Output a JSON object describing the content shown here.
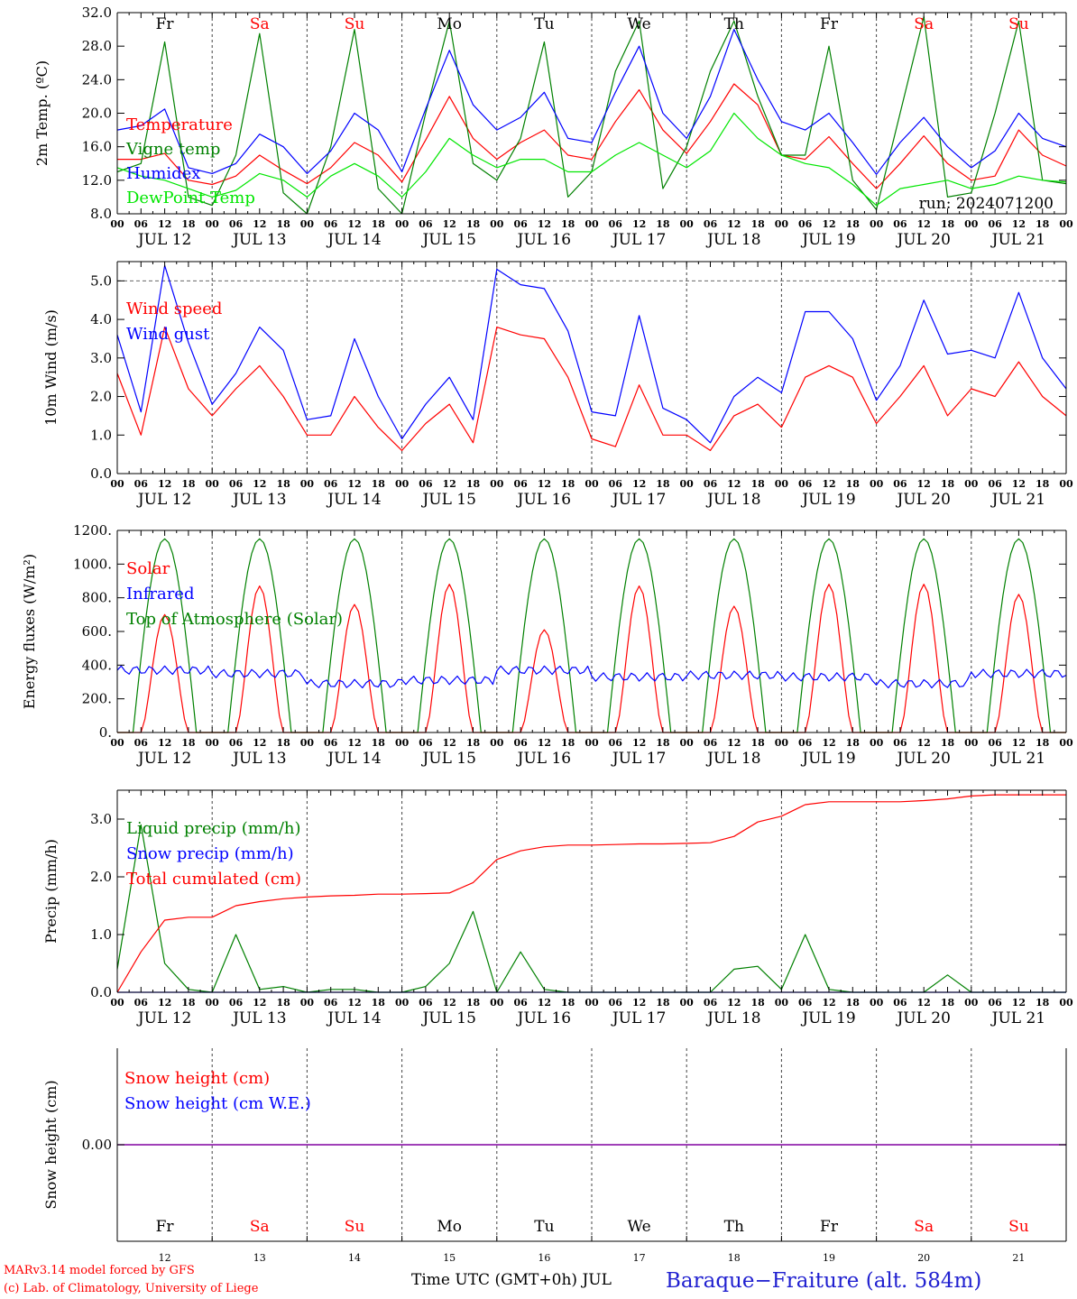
{
  "colors": {
    "temperature": "#ff0000",
    "vigne": "#008000",
    "humidex": "#0000ff",
    "dewpoint": "#00e600",
    "weekend": "#ff0000",
    "weekday": "#000000",
    "title": "#2020d0",
    "snow_line": "#8000a0"
  },
  "days": {
    "weekday_labels": [
      "Fr",
      "Sa",
      "Su",
      "Mo",
      "Tu",
      "We",
      "Th",
      "Fr",
      "Sa",
      "Su"
    ],
    "weekend_flags": [
      false,
      true,
      true,
      false,
      false,
      false,
      false,
      false,
      true,
      true
    ],
    "date_labels": [
      "JUL 12",
      "JUL 13",
      "JUL 14",
      "JUL 15",
      "JUL 16",
      "JUL 17",
      "JUL 18",
      "JUL 19",
      "JUL 20",
      "JUL 21"
    ],
    "day_numbers": [
      "12",
      "13",
      "14",
      "15",
      "16",
      "17",
      "18",
      "19",
      "20",
      "21"
    ],
    "hour_ticks": [
      "00",
      "06",
      "12",
      "18"
    ],
    "final_hour": "00"
  },
  "chart_data": [
    {
      "type": "line",
      "ylabel": "2m Temp. (ºC)",
      "ylim": [
        8,
        32
      ],
      "yticks": [
        "8.0",
        "12.0",
        "16.0",
        "20.0",
        "24.0",
        "28.0",
        "32.0"
      ],
      "annotation": "run: 2024071200",
      "x_hours": [
        0,
        6,
        12,
        18,
        24,
        30,
        36,
        42,
        48,
        54,
        60,
        66,
        72,
        78,
        84,
        90,
        96,
        102,
        108,
        114,
        120,
        126,
        132,
        138,
        144,
        150,
        156,
        162,
        168,
        174,
        180,
        186,
        192,
        198,
        204,
        210,
        216,
        222,
        228,
        234,
        240
      ],
      "series": [
        {
          "name": "Temperature",
          "color": "#ff0000",
          "values": [
            14.5,
            14.5,
            15.2,
            12.0,
            11.5,
            12.5,
            15.0,
            13.2,
            11.6,
            13.5,
            16.5,
            15.0,
            11.8,
            16.8,
            22.0,
            17.0,
            14.5,
            16.5,
            18.0,
            15.0,
            14.5,
            19.0,
            22.8,
            18.0,
            15.2,
            19.0,
            23.5,
            21.0,
            15.0,
            14.5,
            17.2,
            14.0,
            11.0,
            14.0,
            17.3,
            14.0,
            12.0,
            12.5,
            18.0,
            15.0,
            13.7
          ]
        },
        {
          "name": "Vigne temp",
          "color": "#008000",
          "values": [
            13.0,
            14.0,
            28.5,
            10.0,
            9.0,
            15.0,
            29.5,
            10.5,
            7.5,
            16.0,
            30.0,
            11.0,
            8.0,
            20.0,
            31.0,
            14.0,
            12.0,
            17.0,
            28.5,
            10.0,
            13.0,
            25.0,
            31.0,
            11.0,
            16.0,
            25.0,
            31.0,
            22.0,
            15.0,
            15.0,
            28.0,
            12.0,
            8.5,
            20.0,
            31.5,
            10.0,
            10.5,
            20.0,
            31.0,
            12.0,
            11.6
          ]
        },
        {
          "name": "Humidex",
          "color": "#0000ff",
          "values": [
            18.0,
            18.5,
            20.5,
            13.5,
            12.8,
            14.0,
            17.5,
            16.0,
            12.8,
            15.5,
            20.0,
            18.0,
            13.0,
            20.5,
            27.5,
            21.0,
            18.0,
            19.5,
            22.5,
            17.0,
            16.5,
            22.5,
            28.0,
            20.0,
            17.0,
            22.0,
            30.0,
            24.0,
            19.0,
            18.0,
            20.0,
            16.5,
            12.7,
            16.5,
            19.5,
            16.0,
            13.5,
            15.5,
            20.0,
            17.0,
            16.0
          ]
        },
        {
          "name": "DewPoint Temp",
          "color": "#00e600",
          "values": [
            13.5,
            12.5,
            12.0,
            11.0,
            10.0,
            10.8,
            12.8,
            12.0,
            10.0,
            12.5,
            14.0,
            12.5,
            10.0,
            13.0,
            17.0,
            15.0,
            13.5,
            14.5,
            14.5,
            13.0,
            13.0,
            15.0,
            16.5,
            15.0,
            13.5,
            15.5,
            20.0,
            17.0,
            15.0,
            14.0,
            13.5,
            11.5,
            9.0,
            11.0,
            11.5,
            12.0,
            11.0,
            11.5,
            12.5,
            12.0,
            11.8
          ]
        }
      ]
    },
    {
      "type": "line",
      "ylabel": "10m Wind (m/s)",
      "ylim": [
        0,
        5.5
      ],
      "yticks": [
        "0.0",
        "1.0",
        "2.0",
        "3.0",
        "4.0",
        "5.0"
      ],
      "x_hours": [
        0,
        6,
        12,
        18,
        24,
        30,
        36,
        42,
        48,
        54,
        60,
        66,
        72,
        78,
        84,
        90,
        96,
        102,
        108,
        114,
        120,
        126,
        132,
        138,
        144,
        150,
        156,
        162,
        168,
        174,
        180,
        186,
        192,
        198,
        204,
        210,
        216,
        222,
        228,
        234,
        240
      ],
      "series": [
        {
          "name": "Wind speed",
          "color": "#ff0000",
          "values": [
            2.6,
            1.0,
            3.8,
            2.2,
            1.5,
            2.2,
            2.8,
            2.0,
            1.0,
            1.0,
            2.0,
            1.2,
            0.6,
            1.3,
            1.8,
            0.8,
            3.8,
            3.6,
            3.5,
            2.5,
            0.9,
            0.7,
            2.3,
            1.0,
            1.0,
            0.6,
            1.5,
            1.8,
            1.2,
            2.5,
            2.8,
            2.5,
            1.3,
            2.0,
            2.8,
            1.5,
            2.2,
            2.0,
            2.9,
            2.0,
            1.5
          ]
        },
        {
          "name": "Wind gust",
          "color": "#0000ff",
          "values": [
            3.6,
            1.6,
            5.4,
            3.4,
            1.8,
            2.6,
            3.8,
            3.2,
            1.4,
            1.5,
            3.5,
            2.0,
            0.9,
            1.8,
            2.5,
            1.4,
            5.3,
            4.9,
            4.8,
            3.7,
            1.6,
            1.5,
            4.1,
            1.7,
            1.4,
            0.8,
            2.0,
            2.5,
            2.1,
            4.2,
            4.2,
            3.5,
            1.9,
            2.8,
            4.5,
            3.1,
            3.2,
            3.0,
            4.7,
            3.0,
            2.2
          ]
        }
      ]
    },
    {
      "type": "line",
      "ylabel": "Energy fluxes (W/m²)",
      "ylim": [
        0,
        1200
      ],
      "yticks": [
        "0.",
        "200.",
        "400.",
        "600.",
        "800.",
        "1000.",
        "1200."
      ],
      "solar_peaks": [
        700,
        870,
        760,
        880,
        610,
        870,
        750,
        880,
        880,
        820
      ],
      "toa_peak": 1150,
      "infrared_levels": [
        370,
        350,
        290,
        310,
        370,
        330,
        340,
        330,
        290,
        350
      ],
      "series": [
        {
          "name": "Solar",
          "color": "#ff0000"
        },
        {
          "name": "Infrared",
          "color": "#0000ff"
        },
        {
          "name": "Top of Atmosphere (Solar)",
          "color": "#008000"
        }
      ]
    },
    {
      "type": "line",
      "ylabel": "Precip (mm/h)",
      "ylim": [
        0,
        3.5
      ],
      "yticks": [
        "0.0",
        "1.0",
        "2.0",
        "3.0"
      ],
      "x_hours": [
        0,
        6,
        12,
        18,
        24,
        30,
        36,
        42,
        48,
        54,
        60,
        66,
        72,
        78,
        84,
        90,
        96,
        102,
        108,
        114,
        120,
        126,
        132,
        138,
        144,
        150,
        156,
        162,
        168,
        174,
        180,
        186,
        192,
        198,
        204,
        210,
        216,
        222,
        228,
        234,
        240
      ],
      "series": [
        {
          "name": "Liquid precip (mm/h)",
          "color": "#008000",
          "values": [
            0.4,
            2.9,
            0.5,
            0.05,
            0.0,
            1.0,
            0.05,
            0.1,
            0.0,
            0.05,
            0.05,
            0.0,
            0.0,
            0.1,
            0.5,
            1.4,
            0.0,
            0.7,
            0.05,
            0.0,
            0.0,
            0.0,
            0.0,
            0.0,
            0.0,
            0.0,
            0.4,
            0.45,
            0.05,
            1.0,
            0.05,
            0.0,
            0.0,
            0.0,
            0.0,
            0.3,
            0.0,
            0.0,
            0.0,
            0.0,
            0.0
          ]
        },
        {
          "name": "Snow precip (mm/h)",
          "color": "#0000ff",
          "values": [
            0,
            0,
            0,
            0,
            0,
            0,
            0,
            0,
            0,
            0,
            0,
            0,
            0,
            0,
            0,
            0,
            0,
            0,
            0,
            0,
            0,
            0,
            0,
            0,
            0,
            0,
            0,
            0,
            0,
            0,
            0,
            0,
            0,
            0,
            0,
            0,
            0,
            0,
            0,
            0,
            0
          ]
        },
        {
          "name": "Total cumulated (cm)",
          "color": "#ff0000",
          "values": [
            0.0,
            0.7,
            1.25,
            1.3,
            1.3,
            1.5,
            1.57,
            1.62,
            1.65,
            1.67,
            1.68,
            1.7,
            1.7,
            1.71,
            1.72,
            1.9,
            2.3,
            2.45,
            2.52,
            2.55,
            2.55,
            2.56,
            2.57,
            2.57,
            2.58,
            2.59,
            2.7,
            2.95,
            3.05,
            3.25,
            3.3,
            3.3,
            3.3,
            3.3,
            3.32,
            3.35,
            3.4,
            3.42,
            3.42,
            3.42,
            3.42
          ]
        }
      ]
    },
    {
      "type": "line",
      "ylabel": "Snow height (cm)",
      "ylim": [
        -1,
        1
      ],
      "yticks": [
        "0.00"
      ],
      "series": [
        {
          "name": "Snow height (cm)",
          "color": "#ff0000",
          "values": [
            0,
            0
          ]
        },
        {
          "name": "Snow height (cm W.E.)",
          "color": "#0000ff",
          "values": [
            0,
            0
          ]
        }
      ]
    }
  ],
  "footer": {
    "model_line": "MARv3.14 model forced by GFS",
    "copyright_line": "(c) Lab. of Climatology, University of Liege",
    "xlabel": "Time UTC (GMT+0h) JUL",
    "station_title": "Baraque−Fraiture (alt. 584m)"
  }
}
